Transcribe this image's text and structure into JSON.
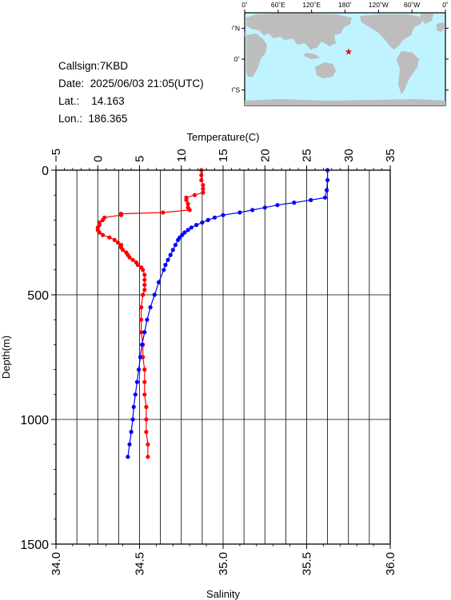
{
  "station": {
    "callsign_label": "Callsign:",
    "callsign": "7KBD",
    "date_label": "Date:",
    "date": "2025/06/03 21:05(UTC)",
    "lat_label": "Lat.:",
    "lat": "14.163",
    "lon_label": "Lon.:",
    "lon": "186.365"
  },
  "map": {
    "lon_ticks": [
      "0˚",
      "60˚E",
      "120˚E",
      "180˚",
      "120˚W",
      "60˚W",
      "0˚"
    ],
    "lat_ticks": [
      "60˚N",
      "0˚",
      "60˚S"
    ],
    "marker_lon": 186.365,
    "marker_lat": 14.163,
    "ocean_color": "#bff3ff",
    "land_color": "#bdbdbd",
    "marker_color": "#ff0000"
  },
  "chart_data": {
    "type": "line",
    "ylabel": "Depth(m)",
    "ylim": [
      1500,
      0
    ],
    "yticks": [
      0,
      500,
      1000,
      1500
    ],
    "top_axis": {
      "label": "Temperature(C)",
      "lim": [
        -5,
        35
      ],
      "ticks": [
        -5,
        0,
        5,
        10,
        15,
        20,
        25,
        30,
        35
      ]
    },
    "bottom_axis": {
      "label": "Salinity",
      "lim": [
        34.0,
        36.0
      ],
      "ticks": [
        "34.0",
        "34.5",
        "35.0",
        "35.5",
        "36.0"
      ]
    },
    "grid": true,
    "series": [
      {
        "color": "#ff0000",
        "axis": "bottom",
        "depth": [
          0,
          20,
          40,
          60,
          75,
          90,
          100,
          110,
          120,
          135,
          150,
          160,
          170,
          175,
          180,
          190,
          200,
          210,
          220,
          230,
          240,
          250,
          260,
          270,
          280,
          290,
          300,
          310,
          320,
          330,
          340,
          350,
          360,
          370,
          380,
          390,
          400,
          420,
          440,
          460,
          480,
          500,
          550,
          600,
          650,
          700,
          750,
          800,
          850,
          900,
          950,
          1000,
          1050,
          1100,
          1150
        ],
        "values": [
          34.87,
          34.87,
          34.87,
          34.88,
          34.88,
          34.88,
          34.83,
          34.78,
          34.78,
          34.79,
          34.79,
          34.8,
          34.64,
          34.39,
          34.39,
          34.29,
          34.28,
          34.26,
          34.26,
          34.25,
          34.25,
          34.26,
          34.28,
          34.32,
          34.35,
          34.37,
          34.39,
          34.39,
          34.4,
          34.42,
          34.43,
          34.44,
          34.46,
          34.48,
          34.49,
          34.51,
          34.52,
          34.53,
          34.53,
          34.53,
          34.53,
          34.52,
          34.51,
          34.51,
          34.51,
          34.52,
          34.52,
          34.53,
          34.53,
          34.53,
          34.54,
          34.54,
          34.54,
          34.55,
          34.55
        ]
      },
      {
        "color": "#0000ff",
        "axis": "top",
        "depth": [
          0,
          40,
          80,
          110,
          120,
          130,
          140,
          150,
          160,
          170,
          180,
          190,
          200,
          210,
          220,
          230,
          240,
          250,
          260,
          270,
          280,
          300,
          320,
          340,
          360,
          380,
          400,
          450,
          500,
          550,
          600,
          650,
          700,
          750,
          800,
          850,
          900,
          950,
          1000,
          1050,
          1100,
          1150
        ],
        "values": [
          27.5,
          27.5,
          27.4,
          27.2,
          25.5,
          23.5,
          21.5,
          20.0,
          18.5,
          17.0,
          15.0,
          14.0,
          13.2,
          12.5,
          11.8,
          11.2,
          10.8,
          10.4,
          10.1,
          9.8,
          9.6,
          9.3,
          9.0,
          8.7,
          8.4,
          8.1,
          7.9,
          7.3,
          6.8,
          6.3,
          5.9,
          5.6,
          5.3,
          5.1,
          4.9,
          4.7,
          4.5,
          4.3,
          4.2,
          4.0,
          3.8,
          3.6
        ]
      }
    ]
  }
}
